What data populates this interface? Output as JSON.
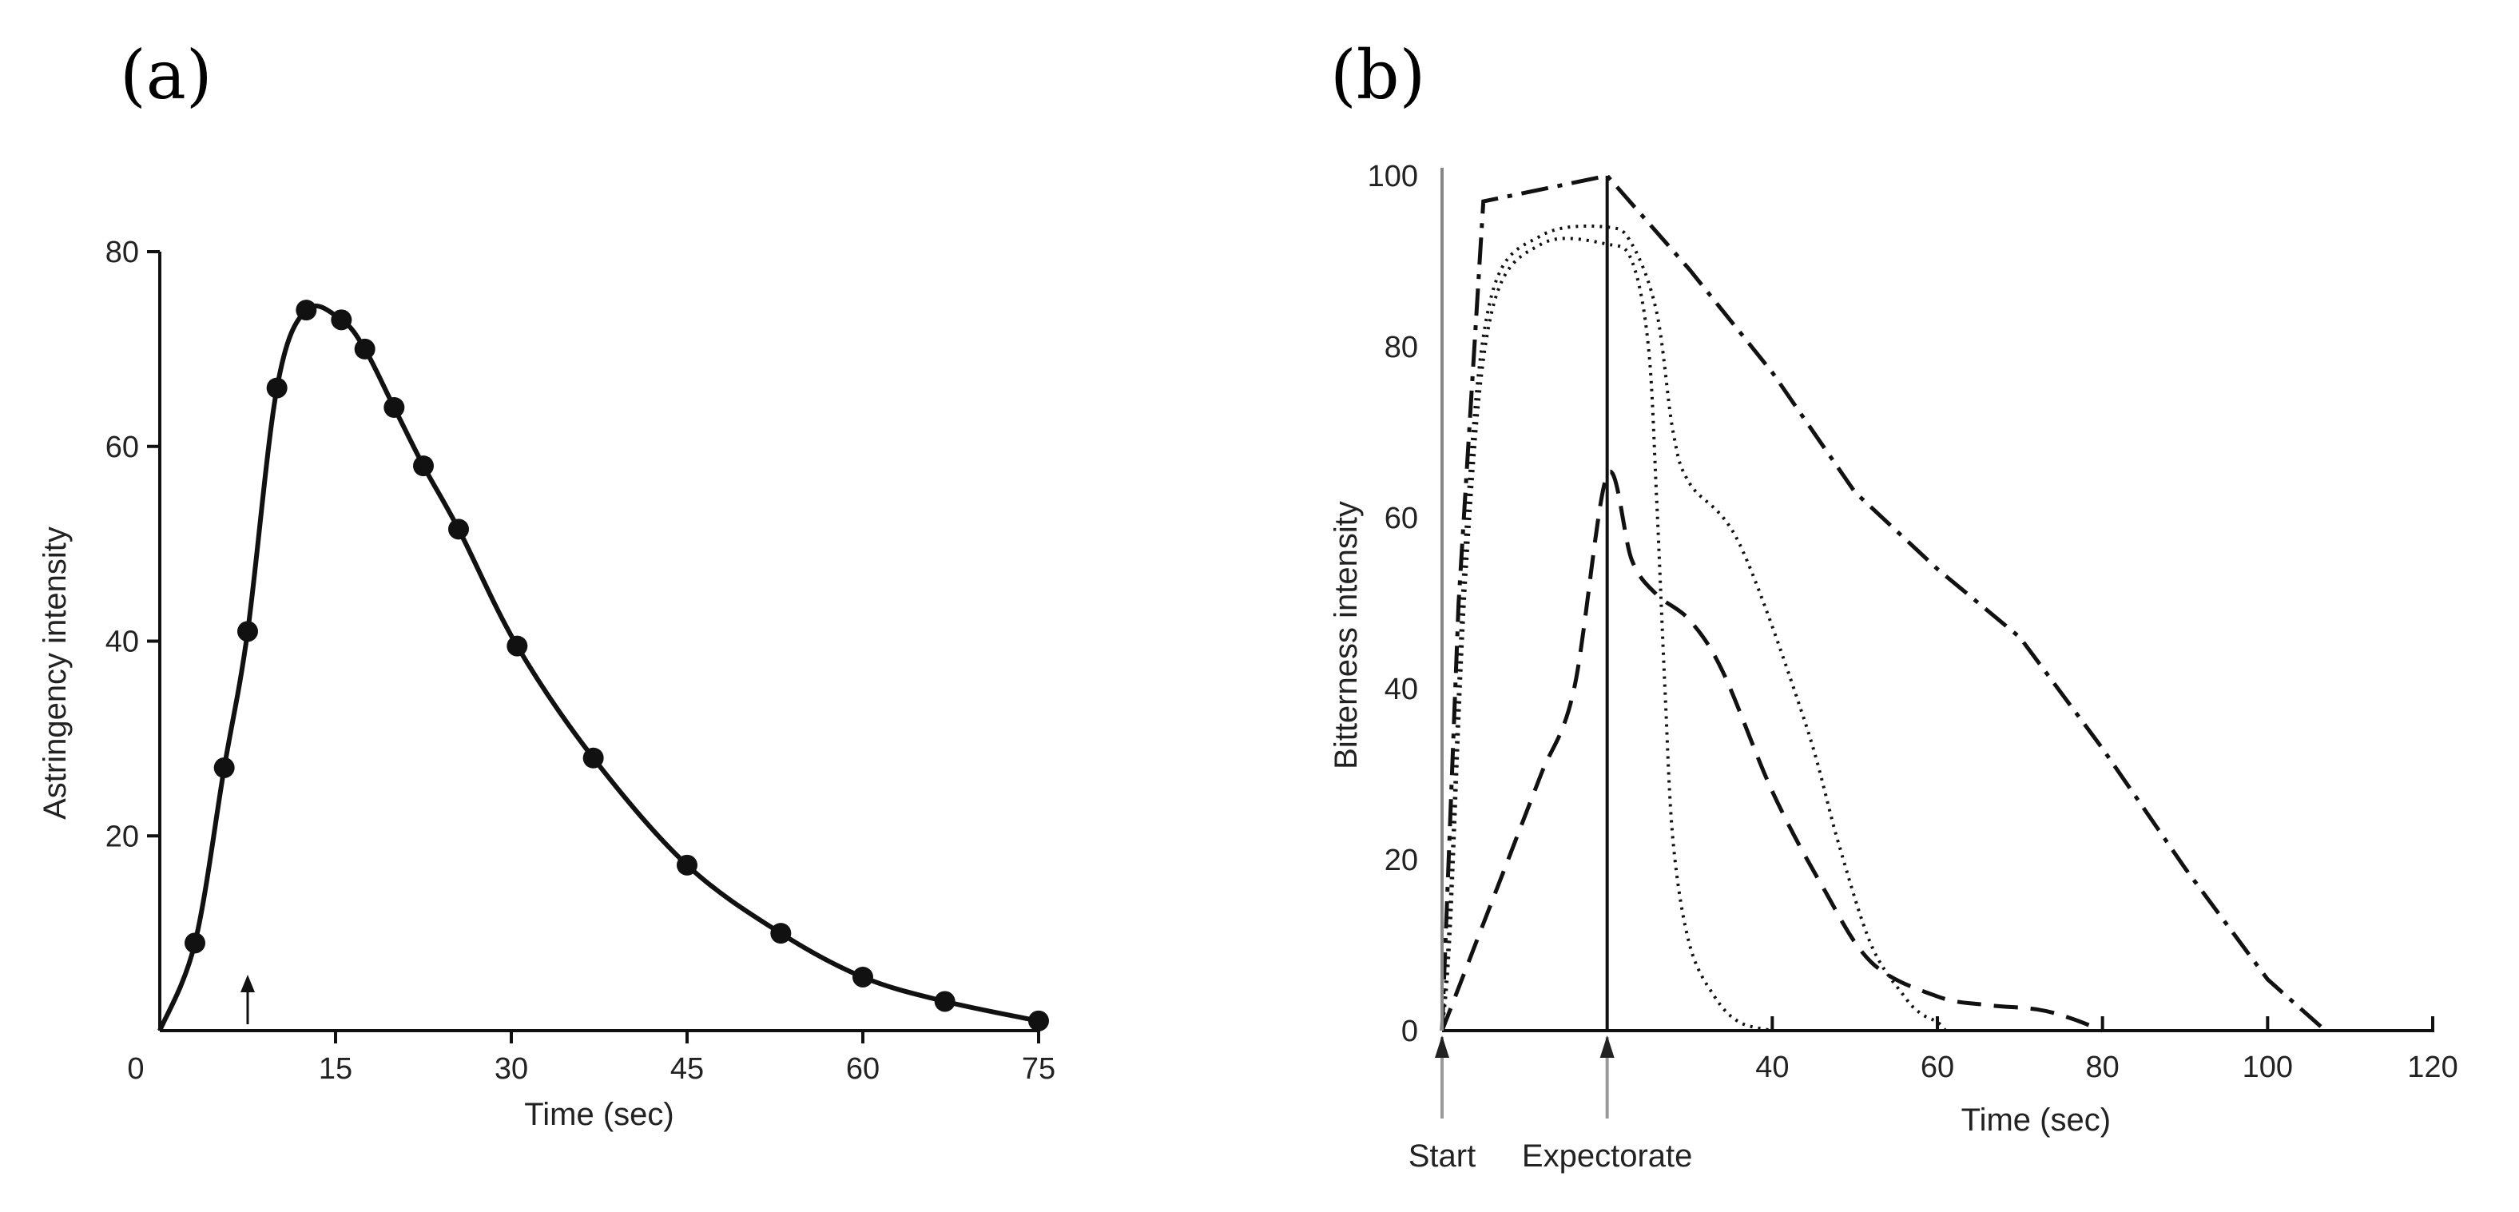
{
  "chart_data": [
    {
      "panel_label": "(a)",
      "type": "line",
      "xlabel": "Time (sec)",
      "ylabel": "Astringency intensity",
      "xlim": [
        0,
        75
      ],
      "ylim": [
        0,
        80
      ],
      "x_ticks": [
        "0",
        "15",
        "30",
        "45",
        "60",
        "75"
      ],
      "x_tick_values": [
        0,
        15,
        30,
        45,
        60,
        75
      ],
      "y_ticks": [
        "20",
        "40",
        "60",
        "80"
      ],
      "y_tick_values": [
        20,
        40,
        60,
        80
      ],
      "marker_x": 7.5,
      "series": [
        {
          "name": "astringency",
          "style": "solid-markers",
          "x": [
            3,
            5.5,
            7.5,
            10,
            12.5,
            15.5,
            17.5,
            20,
            22.5,
            25.5,
            30.5,
            37,
            45,
            53,
            60,
            67,
            75
          ],
          "y": [
            9,
            27,
            41,
            66,
            74,
            73,
            70,
            64,
            58,
            51.5,
            39.5,
            28,
            17,
            10,
            5.5,
            3,
            1
          ]
        }
      ]
    },
    {
      "panel_label": "(b)",
      "type": "line",
      "xlabel": "Time (sec)",
      "ylabel": "Bitterness intensity",
      "xlim": [
        0,
        120
      ],
      "ylim": [
        0,
        100
      ],
      "x_ticks": [
        "40",
        "60",
        "80",
        "100",
        "120"
      ],
      "x_tick_values": [
        40,
        60,
        80,
        100,
        120
      ],
      "y_ticks": [
        "0",
        "20",
        "40",
        "60",
        "80",
        "100"
      ],
      "y_tick_values": [
        0,
        20,
        40,
        60,
        80,
        100
      ],
      "events": [
        {
          "label": "Start",
          "x": 0
        },
        {
          "label": "Expectorate",
          "x": 20
        }
      ],
      "series": [
        {
          "name": "dash-dot",
          "style": "dashdot",
          "x": [
            0,
            2,
            5,
            20,
            30,
            40,
            50,
            60,
            70,
            80,
            90,
            100,
            107
          ],
          "y": [
            0,
            50,
            97,
            100,
            89,
            77,
            63,
            54,
            46,
            33,
            19,
            6,
            0
          ]
        },
        {
          "name": "dotted-outer",
          "style": "dotted",
          "x": [
            0,
            1,
            3,
            6,
            12,
            20,
            23,
            26,
            28,
            30,
            36,
            44,
            48,
            52,
            56,
            58,
            60,
            61
          ],
          "y": [
            0,
            15,
            60,
            86,
            93,
            94,
            92,
            84,
            70,
            64,
            57,
            36,
            22,
            10,
            4,
            2,
            1,
            0
          ]
        },
        {
          "name": "dotted-inner",
          "style": "dotted",
          "x": [
            0,
            1,
            3,
            6,
            12,
            20,
            23,
            25,
            26,
            27,
            28,
            30,
            33,
            36,
            40
          ],
          "y": [
            0,
            12,
            55,
            84,
            92,
            92,
            90,
            80,
            62,
            40,
            22,
            10,
            4,
            1,
            0
          ]
        },
        {
          "name": "dashed",
          "style": "dashed",
          "x": [
            0,
            4,
            8,
            12,
            16,
            20,
            23,
            26,
            30,
            34,
            40,
            46,
            52,
            60,
            66,
            72,
            76,
            80
          ],
          "y": [
            0,
            10,
            20,
            30,
            40,
            65,
            55,
            51,
            48,
            42,
            28,
            17,
            8,
            4,
            3,
            2.5,
            1.5,
            0
          ]
        }
      ]
    }
  ]
}
